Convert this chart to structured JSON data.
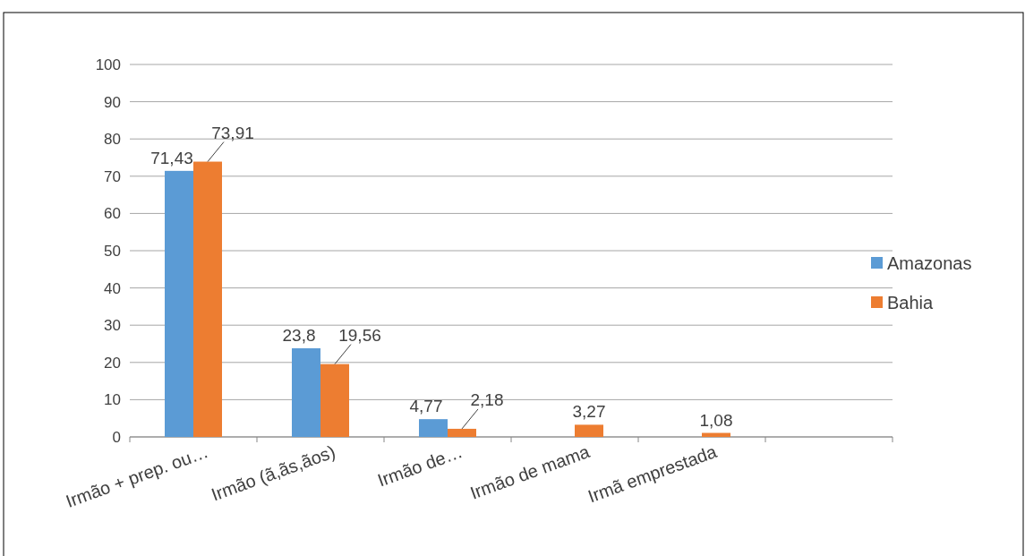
{
  "chart_data": {
    "type": "bar",
    "categories": [
      "Irmão + prep. ou…",
      "Irmão (ã,ãs,ãos)",
      "Irmão de…",
      "Irmão de mama",
      "Irmã emprestada",
      null
    ],
    "series": [
      {
        "name": "Amazonas",
        "color": "#5b9bd5",
        "values": [
          71.43,
          23.8,
          4.77,
          null,
          null,
          null
        ],
        "value_labels": [
          "71,43",
          "23,8",
          "4,77",
          null,
          null,
          null
        ]
      },
      {
        "name": "Bahia",
        "color": "#ed7d31",
        "values": [
          73.91,
          19.56,
          2.18,
          3.27,
          1.08,
          null
        ],
        "value_labels": [
          "73,91",
          "19,56",
          "2,18",
          "3,27",
          "1,08",
          null
        ]
      }
    ],
    "ylim": [
      0,
      100
    ],
    "yticks": [
      0,
      10,
      20,
      30,
      40,
      50,
      60,
      70,
      80,
      90,
      100
    ],
    "grid": "y",
    "legend": "right"
  }
}
